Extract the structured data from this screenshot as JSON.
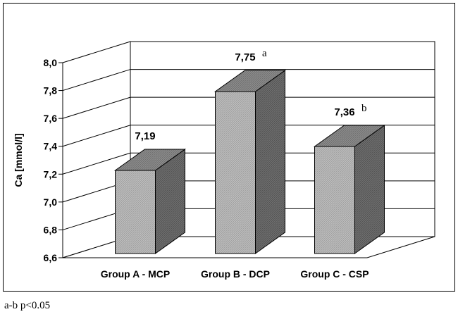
{
  "chart_data": {
    "type": "bar",
    "title": "",
    "xlabel": "",
    "ylabel": "Ca [mmol/l]",
    "ylim": [
      6.6,
      8.0
    ],
    "yticks": [
      "6,6",
      "6,8",
      "7,0",
      "7,2",
      "7,4",
      "7,6",
      "7,8",
      "8,0"
    ],
    "ytick_values": [
      6.6,
      6.8,
      7.0,
      7.2,
      7.4,
      7.6,
      7.8,
      8.0
    ],
    "grid": true,
    "style": "3d",
    "categories": [
      "Group A - MCP",
      "Group B - DCP",
      "Group C - CSP"
    ],
    "values": [
      7.19,
      7.75,
      7.36
    ],
    "value_labels": [
      "7,19",
      "7,75",
      "7,36"
    ],
    "significance": [
      "",
      "a",
      "b"
    ]
  },
  "footnote": "a-b p<0.05"
}
